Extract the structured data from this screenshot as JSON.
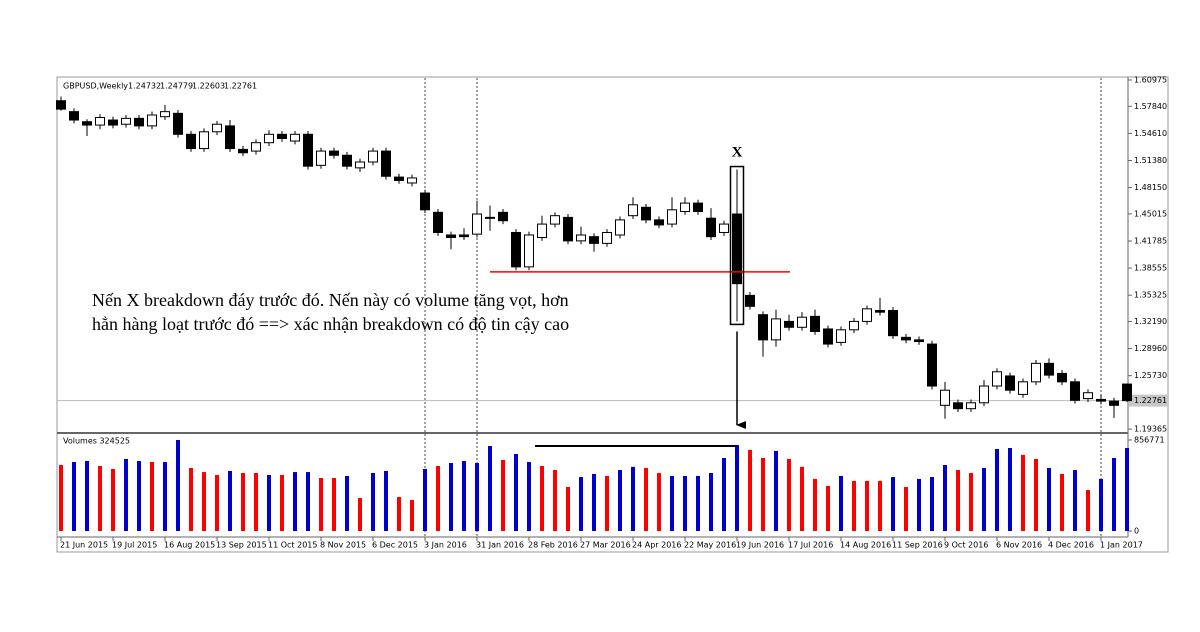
{
  "chart_data": {
    "type": "candlestick",
    "symbol": "GBPUSD,Weekly",
    "volume_label": "Volumes 324525",
    "annotation_x": "X",
    "annotation_lines": [
      "Nến X breakdown đáy trước đó. Nến này có volume tăng vọt, hơn",
      "hẳn hàng loạt trước đó ==> xác nhận breakdown có độ tin cậy cao"
    ],
    "categories": [
      "21 Jun 2015",
      null,
      null,
      null,
      "19 Jul 2015",
      null,
      null,
      null,
      "16 Aug 2015",
      null,
      null,
      null,
      "13 Sep 2015",
      null,
      null,
      null,
      "11 Oct 2015",
      null,
      null,
      null,
      "8 Nov 2015",
      null,
      null,
      null,
      "6 Dec 2015",
      null,
      null,
      null,
      "3 Jan 2016",
      null,
      null,
      null,
      "31 Jan 2016",
      null,
      null,
      null,
      "28 Feb 2016",
      null,
      null,
      null,
      "27 Mar 2016",
      null,
      null,
      null,
      "24 Apr 2016",
      null,
      null,
      null,
      "22 May 2016",
      null,
      null,
      null,
      "19 Jun 2016",
      null,
      null,
      null,
      "17 Jul 2016",
      null,
      null,
      null,
      "14 Aug 2016",
      null,
      null,
      null,
      "11 Sep 2016",
      null,
      null,
      null,
      "9 Oct 2016",
      null,
      null,
      null,
      "6 Nov 2016",
      null,
      null,
      null,
      "4 Dec 2016",
      null,
      null,
      null,
      "1 Jan 2017",
      null,
      null
    ],
    "open": [
      1.585,
      1.572,
      1.56,
      1.556,
      1.562,
      1.557,
      1.564,
      1.555,
      1.566,
      1.57,
      1.545,
      1.528,
      1.548,
      1.555,
      1.527,
      1.525,
      1.535,
      1.545,
      1.537,
      1.545,
      1.508,
      1.525,
      1.52,
      1.505,
      1.512,
      1.525,
      1.494,
      1.487,
      1.475,
      1.452,
      1.425,
      1.425,
      1.426,
      1.445,
      1.452,
      1.428,
      1.387,
      1.422,
      1.438,
      1.446,
      1.418,
      1.423,
      1.415,
      1.425,
      1.448,
      1.458,
      1.443,
      1.438,
      1.453,
      1.463,
      1.445,
      1.428,
      1.45,
      1.353,
      1.33,
      1.3,
      1.322,
      1.315,
      1.328,
      1.313,
      1.297,
      1.312,
      1.322,
      1.335,
      1.335,
      1.303,
      1.3,
      1.295,
      1.222,
      1.225,
      1.218,
      1.225,
      1.245,
      1.257,
      1.235,
      1.25,
      1.272,
      1.26,
      1.25,
      1.23,
      1.229,
      1.227,
      1.24732
    ],
    "high": [
      1.59,
      1.576,
      1.563,
      1.569,
      1.566,
      1.568,
      1.568,
      1.572,
      1.58,
      1.574,
      1.549,
      1.552,
      1.561,
      1.562,
      1.531,
      1.539,
      1.55,
      1.549,
      1.549,
      1.549,
      1.529,
      1.529,
      1.524,
      1.516,
      1.529,
      1.529,
      1.498,
      1.497,
      1.479,
      1.456,
      1.429,
      1.433,
      1.466,
      1.46,
      1.456,
      1.432,
      1.429,
      1.448,
      1.452,
      1.45,
      1.435,
      1.427,
      1.432,
      1.447,
      1.47,
      1.462,
      1.447,
      1.47,
      1.47,
      1.467,
      1.457,
      1.442,
      1.503,
      1.357,
      1.334,
      1.336,
      1.33,
      1.333,
      1.336,
      1.317,
      1.316,
      1.326,
      1.341,
      1.35,
      1.339,
      1.307,
      1.304,
      1.299,
      1.25,
      1.229,
      1.229,
      1.252,
      1.266,
      1.261,
      1.254,
      1.276,
      1.278,
      1.264,
      1.254,
      1.241,
      1.235,
      1.231,
      1.24779
    ],
    "low": [
      1.573,
      1.558,
      1.543,
      1.551,
      1.552,
      1.553,
      1.551,
      1.551,
      1.562,
      1.541,
      1.524,
      1.524,
      1.544,
      1.524,
      1.519,
      1.521,
      1.531,
      1.536,
      1.533,
      1.503,
      1.504,
      1.516,
      1.503,
      1.5,
      1.508,
      1.491,
      1.486,
      1.483,
      1.451,
      1.424,
      1.408,
      1.419,
      1.422,
      1.43,
      1.438,
      1.383,
      1.383,
      1.418,
      1.434,
      1.414,
      1.414,
      1.405,
      1.411,
      1.421,
      1.444,
      1.439,
      1.433,
      1.434,
      1.449,
      1.449,
      1.419,
      1.424,
      1.322,
      1.336,
      1.28,
      1.292,
      1.311,
      1.311,
      1.306,
      1.291,
      1.293,
      1.308,
      1.318,
      1.329,
      1.301,
      1.296,
      1.294,
      1.241,
      1.206,
      1.214,
      1.214,
      1.221,
      1.241,
      1.236,
      1.231,
      1.246,
      1.254,
      1.246,
      1.224,
      1.226,
      1.223,
      1.207,
      1.22603
    ],
    "close": [
      1.575,
      1.562,
      1.556,
      1.565,
      1.556,
      1.564,
      1.555,
      1.568,
      1.572,
      1.545,
      1.528,
      1.548,
      1.557,
      1.528,
      1.523,
      1.535,
      1.545,
      1.54,
      1.545,
      1.507,
      1.525,
      1.52,
      1.507,
      1.512,
      1.525,
      1.495,
      1.49,
      1.493,
      1.455,
      1.428,
      1.422,
      1.423,
      1.45,
      1.446,
      1.442,
      1.387,
      1.425,
      1.438,
      1.448,
      1.418,
      1.425,
      1.415,
      1.428,
      1.443,
      1.461,
      1.443,
      1.437,
      1.455,
      1.463,
      1.453,
      1.423,
      1.438,
      1.367,
      1.34,
      1.3,
      1.325,
      1.315,
      1.327,
      1.31,
      1.295,
      1.312,
      1.322,
      1.337,
      1.333,
      1.305,
      1.3,
      1.298,
      1.245,
      1.24,
      1.218,
      1.225,
      1.245,
      1.262,
      1.24,
      1.25,
      1.272,
      1.258,
      1.25,
      1.228,
      1.237,
      1.227,
      1.222,
      1.22761
    ],
    "volumes": [
      621000,
      650000,
      659000,
      612000,
      584000,
      678000,
      659000,
      650000,
      650000,
      856771,
      593000,
      555000,
      527000,
      565000,
      546000,
      546000,
      527000,
      527000,
      555000,
      555000,
      499000,
      499000,
      518000,
      311000,
      546000,
      565000,
      320000,
      292000,
      584000,
      612000,
      640000,
      659000,
      640000,
      800000,
      668000,
      725000,
      650000,
      612000,
      574000,
      414000,
      508000,
      537000,
      518000,
      574000,
      603000,
      593000,
      546000,
      518000,
      518000,
      518000,
      546000,
      687000,
      810000,
      763000,
      687000,
      753000,
      678000,
      603000,
      490000,
      424000,
      518000,
      471000,
      471000,
      471000,
      508000,
      414000,
      490000,
      508000,
      621000,
      574000,
      546000,
      593000,
      772000,
      781000,
      716000,
      678000,
      593000,
      537000,
      574000,
      386000,
      490000,
      687000,
      781000
    ],
    "volume_colors": [
      "#ff0000",
      "#0000cc",
      "#0000cc",
      "#ff0000",
      "#ff0000",
      "#0000cc",
      "#0000cc",
      "#ff0000",
      "#0000cc",
      "#0000cc",
      "#ff0000",
      "#ff0000",
      "#ff0000",
      "#0000cc",
      "#ff0000",
      "#ff0000",
      "#0000cc",
      "#ff0000",
      "#0000cc",
      "#0000cc",
      "#ff0000",
      "#ff0000",
      "#0000cc",
      "#ff0000",
      "#0000cc",
      "#0000cc",
      "#ff0000",
      "#ff0000",
      "#0000cc",
      "#ff0000",
      "#0000cc",
      "#0000cc",
      "#0000cc",
      "#0000cc",
      "#ff0000",
      "#0000cc",
      "#0000cc",
      "#ff0000",
      "#ff0000",
      "#ff0000",
      "#0000cc",
      "#0000cc",
      "#ff0000",
      "#0000cc",
      "#0000cc",
      "#ff0000",
      "#ff0000",
      "#0000cc",
      "#0000cc",
      "#0000cc",
      "#0000cc",
      "#0000cc",
      "#0000cc",
      "#ff0000",
      "#ff0000",
      "#0000cc",
      "#ff0000",
      "#ff0000",
      "#ff0000",
      "#ff0000",
      "#0000cc",
      "#ff0000",
      "#ff0000",
      "#ff0000",
      "#0000cc",
      "#ff0000",
      "#0000cc",
      "#0000cc",
      "#0000cc",
      "#ff0000",
      "#ff0000",
      "#0000cc",
      "#0000cc",
      "#0000cc",
      "#ff0000",
      "#ff0000",
      "#0000cc",
      "#ff0000",
      "#0000cc",
      "#ff0000",
      "#0000cc",
      "#0000cc",
      "#0000cc"
    ],
    "ylim": [
      1.1902,
      1.6121
    ],
    "yticks": [
      1.60975,
      {
        "value": 1.5784,
        "label": "1.57840"
      },
      {
        "value": 1.5461,
        "label": "1.54610"
      },
      {
        "value": 1.5138,
        "label": "1.51380"
      },
      {
        "value": 1.4815,
        "label": "1.48150"
      },
      1.45015,
      1.41785,
      1.38555,
      1.35325,
      {
        "value": 1.3219,
        "label": "1.32190"
      },
      {
        "value": 1.2896,
        "label": "1.28960"
      },
      {
        "value": 1.2573,
        "label": "1.25730"
      },
      1.19365
    ],
    "volume_ylim": [
      0,
      913000
    ],
    "volume_yticks": [
      856771,
      0
    ],
    "support_line": 1.381,
    "volume_line": 800000,
    "support_color": "#ff0000"
  }
}
